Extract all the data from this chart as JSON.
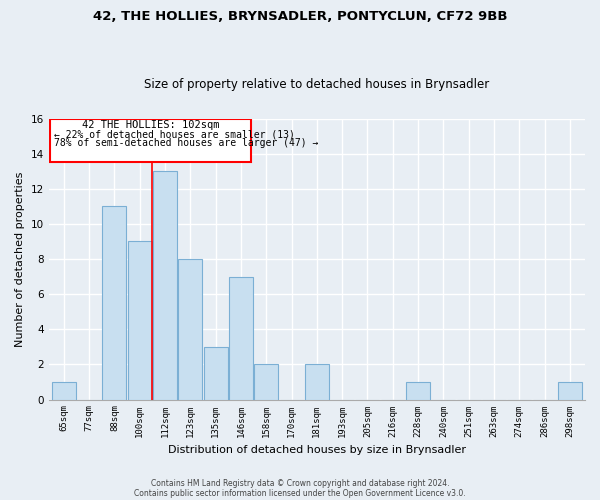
{
  "title1": "42, THE HOLLIES, BRYNSADLER, PONTYCLUN, CF72 9BB",
  "title2": "Size of property relative to detached houses in Brynsadler",
  "xlabel": "Distribution of detached houses by size in Brynsadler",
  "ylabel": "Number of detached properties",
  "categories": [
    "65sqm",
    "77sqm",
    "88sqm",
    "100sqm",
    "112sqm",
    "123sqm",
    "135sqm",
    "146sqm",
    "158sqm",
    "170sqm",
    "181sqm",
    "193sqm",
    "205sqm",
    "216sqm",
    "228sqm",
    "240sqm",
    "251sqm",
    "263sqm",
    "274sqm",
    "286sqm",
    "298sqm"
  ],
  "values": [
    1,
    0,
    11,
    9,
    13,
    8,
    3,
    7,
    2,
    0,
    2,
    0,
    0,
    0,
    1,
    0,
    0,
    0,
    0,
    0,
    1
  ],
  "bar_color": "#c8dff0",
  "bar_edge_color": "#7bafd4",
  "ylim": [
    0,
    16
  ],
  "yticks": [
    0,
    2,
    4,
    6,
    8,
    10,
    12,
    14,
    16
  ],
  "annotation_box_text_line1": "42 THE HOLLIES: 102sqm",
  "annotation_box_text_line2": "← 22% of detached houses are smaller (13)",
  "annotation_box_text_line3": "78% of semi-detached houses are larger (47) →",
  "vline_bar_index": 3,
  "box_color": "red",
  "footnote1": "Contains HM Land Registry data © Crown copyright and database right 2024.",
  "footnote2": "Contains public sector information licensed under the Open Government Licence v3.0.",
  "bg_color": "#e8eef4",
  "grid_color": "white"
}
